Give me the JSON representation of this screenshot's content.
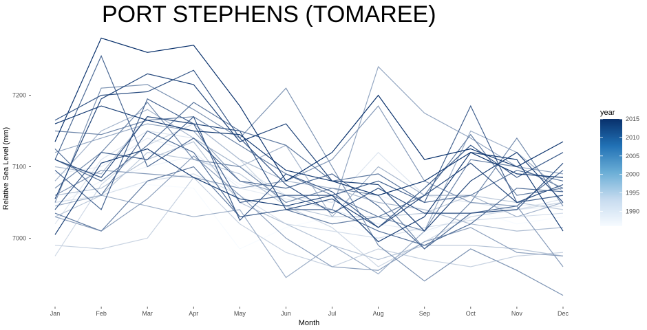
{
  "chart_data": {
    "type": "line",
    "title": "PORT STEPHENS (TOMAREE)",
    "xlabel": "Month",
    "ylabel": "Relative Sea Level (mm)",
    "categories": [
      "Jan",
      "Feb",
      "Mar",
      "Apr",
      "May",
      "Jun",
      "Jul",
      "Aug",
      "Sep",
      "Oct",
      "Nov",
      "Dec"
    ],
    "ylim": [
      6910,
      7290
    ],
    "yticks": [
      7000,
      7100,
      7200
    ],
    "ytick_labels": [
      "7000",
      "7100",
      "7200"
    ],
    "grid": false,
    "legend": {
      "title": "year",
      "placement": "right",
      "type": "continuous color scale",
      "range": [
        1986,
        2015
      ],
      "ticks": [
        1990,
        1995,
        2000,
        2005,
        2010,
        2015
      ],
      "color_low": "#f7fbff",
      "color_high": "#08306b"
    },
    "series": [
      {
        "year": 1986,
        "values": [
          7060,
          7065,
          7075,
          7070,
          6985,
          7015,
          7030,
          7000,
          7005,
          7040,
          7020,
          7030
        ]
      },
      {
        "year": 1987,
        "values": [
          7045,
          7080,
          7100,
          7115,
          7075,
          7060,
          7050,
          7060,
          7040,
          7030,
          7045,
          7050
        ]
      },
      {
        "year": 1988,
        "values": [
          7090,
          7100,
          7140,
          7120,
          7070,
          7055,
          7040,
          7020,
          7010,
          7030,
          7040,
          7045
        ]
      },
      {
        "year": 1989,
        "values": [
          7020,
          7110,
          7150,
          7140,
          7100,
          7060,
          7050,
          7120,
          7060,
          7050,
          7040,
          7055
        ]
      },
      {
        "year": 1990,
        "values": [
          7050,
          7060,
          7080,
          7090,
          7060,
          7020,
          7010,
          7000,
          7015,
          7025,
          7030,
          7035
        ]
      },
      {
        "year": 1991,
        "values": [
          6975,
          7075,
          7130,
          7160,
          7110,
          7045,
          7015,
          6960,
          6995,
          7030,
          7040,
          7050
        ]
      },
      {
        "year": 1992,
        "values": [
          6990,
          6985,
          7000,
          7085,
          7020,
          6980,
          6960,
          6985,
          6970,
          6960,
          6975,
          6980
        ]
      },
      {
        "year": 1993,
        "values": [
          7030,
          7060,
          7120,
          7110,
          7090,
          7045,
          7030,
          7030,
          7035,
          7060,
          7050,
          7040
        ]
      },
      {
        "year": 1994,
        "values": [
          7060,
          7070,
          7110,
          7135,
          7050,
          7020,
          6990,
          6970,
          6990,
          6990,
          6985,
          6975
        ]
      },
      {
        "year": 1995,
        "values": [
          7100,
          7090,
          7170,
          7160,
          7110,
          7080,
          7070,
          7050,
          7040,
          7020,
          7010,
          7015
        ]
      },
      {
        "year": 1996,
        "values": [
          7080,
          7150,
          7180,
          7140,
          7100,
          7130,
          7030,
          7100,
          7060,
          7060,
          7030,
          7050
        ]
      },
      {
        "year": 1997,
        "values": [
          7045,
          7060,
          7045,
          7030,
          7040,
          6945,
          6990,
          6950,
          7010,
          7150,
          7120,
          7065
        ]
      },
      {
        "year": 1998,
        "values": [
          7120,
          7140,
          7160,
          7150,
          7080,
          7060,
          7040,
          7240,
          7175,
          7140,
          7100,
          7090
        ]
      },
      {
        "year": 1999,
        "values": [
          7030,
          7010,
          7055,
          7115,
          7060,
          7000,
          6960,
          6955,
          6995,
          7015,
          6980,
          6975
        ]
      },
      {
        "year": 2000,
        "values": [
          7060,
          7095,
          7090,
          7085,
          7070,
          7080,
          7110,
          7185,
          7080,
          7050,
          7045,
          6960
        ]
      },
      {
        "year": 2001,
        "values": [
          7050,
          7210,
          7215,
          7180,
          7140,
          7210,
          7100,
          6990,
          6940,
          6985,
          6955,
          6920
        ]
      },
      {
        "year": 2002,
        "values": [
          7070,
          7120,
          7190,
          7110,
          7100,
          7050,
          7070,
          7060,
          6985,
          7050,
          7140,
          7045
        ]
      },
      {
        "year": 2003,
        "values": [
          7150,
          7145,
          7165,
          7170,
          7130,
          7090,
          7060,
          7030,
          7010,
          7110,
          7100,
          7070
        ]
      },
      {
        "year": 2004,
        "values": [
          7035,
          7010,
          7080,
          7100,
          7030,
          7040,
          7020,
          7030,
          7060,
          7145,
          7060,
          7070
        ]
      },
      {
        "year": 2005,
        "values": [
          7110,
          7080,
          7130,
          7190,
          7150,
          7130,
          7080,
          7090,
          7050,
          7060,
          7095,
          7080
        ]
      },
      {
        "year": 2006,
        "values": [
          7125,
          7060,
          7150,
          7120,
          7030,
          7040,
          7040,
          7010,
          6990,
          7020,
          7070,
          7065
        ]
      },
      {
        "year": 2007,
        "values": [
          7110,
          7255,
          7100,
          7140,
          7080,
          7070,
          7090,
          7045,
          6985,
          7035,
          7045,
          7095
        ]
      },
      {
        "year": 2008,
        "values": [
          7095,
          7040,
          7195,
          7160,
          7050,
          7060,
          7060,
          7080,
          7050,
          7185,
          7050,
          7060
        ]
      },
      {
        "year": 2009,
        "values": [
          7040,
          7120,
          7110,
          7170,
          7025,
          7090,
          7065,
          7015,
          7070,
          7130,
          7085,
          7120
        ]
      },
      {
        "year": 2010,
        "values": [
          7165,
          7200,
          7205,
          7235,
          7140,
          7075,
          7035,
          7070,
          7035,
          7035,
          7040,
          7105
        ]
      },
      {
        "year": 2011,
        "values": [
          7110,
          7085,
          7170,
          7160,
          7150,
          7040,
          7055,
          7015,
          7060,
          7105,
          7050,
          7075
        ]
      },
      {
        "year": 2012,
        "values": [
          7055,
          7195,
          7230,
          7215,
          7135,
          7160,
          7080,
          7075,
          7010,
          7080,
          7120,
          7050
        ]
      },
      {
        "year": 2013,
        "values": [
          7005,
          7105,
          7125,
          7085,
          7055,
          7045,
          7060,
          6995,
          7030,
          7120,
          7110,
          7010
        ]
      },
      {
        "year": 2014,
        "values": [
          7160,
          7185,
          7165,
          7150,
          7145,
          7095,
          7080,
          7060,
          7080,
          7120,
          7090,
          7085
        ]
      },
      {
        "year": 2015,
        "values": [
          7135,
          7280,
          7260,
          7270,
          7185,
          7080,
          7120,
          7200,
          7110,
          7125,
          7100,
          7135
        ]
      }
    ]
  }
}
